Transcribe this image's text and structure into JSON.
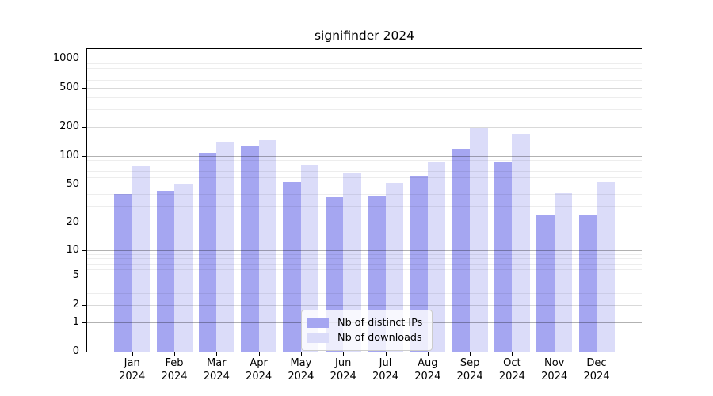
{
  "chart_data": {
    "type": "bar",
    "title": "signifinder 2024",
    "categories": [
      "Jan",
      "Feb",
      "Mar",
      "Apr",
      "May",
      "Jun",
      "Jul",
      "Aug",
      "Sep",
      "Oct",
      "Nov",
      "Dec"
    ],
    "year": "2024",
    "series": [
      {
        "name": "Nb of distinct IPs",
        "color": "#a5a6f1",
        "values": [
          40,
          43,
          107,
          127,
          53,
          37,
          38,
          62,
          119,
          88,
          24,
          24
        ]
      },
      {
        "name": "Nb of downloads",
        "color": "#dbdcf9",
        "values": [
          78,
          51,
          139,
          146,
          81,
          67,
          52,
          88,
          198,
          170,
          41,
          53
        ]
      }
    ],
    "yscale": "log1p",
    "ylim": [
      0,
      1250
    ],
    "yticks": [
      0,
      1,
      2,
      5,
      10,
      20,
      50,
      100,
      200,
      500,
      1000
    ],
    "yticks_minor": [
      3,
      4,
      6,
      7,
      8,
      9,
      30,
      40,
      60,
      70,
      80,
      90,
      300,
      400,
      600,
      700,
      800,
      900
    ],
    "grid": true,
    "legend_position": "lower center"
  }
}
